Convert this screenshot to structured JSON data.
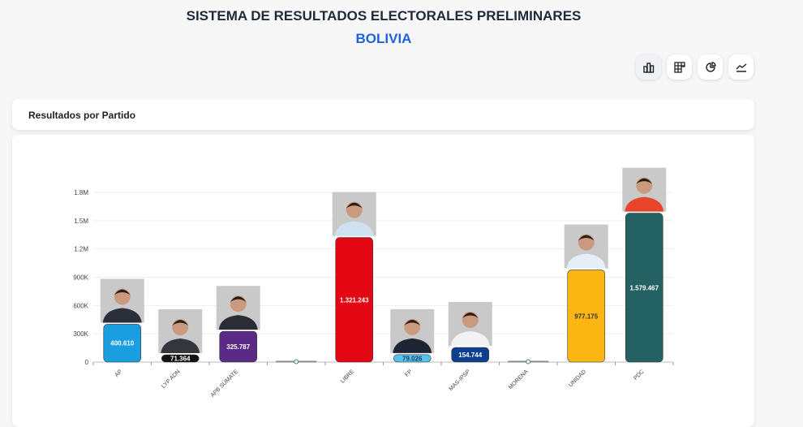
{
  "header": {
    "title": "SISTEMA DE RESULTADOS ELECTORALES PRELIMINARES",
    "subtitle": "BOLIVIA"
  },
  "toolbar": {
    "icons": [
      "bar-chart-icon",
      "grid-chart-icon",
      "pie-chart-icon",
      "line-chart-icon"
    ],
    "active": 0
  },
  "section": {
    "title": "Resultados por Partido"
  },
  "chart_data": {
    "type": "bar",
    "title": "",
    "xlabel": "",
    "ylabel": "",
    "ylim": [
      0,
      1800000
    ],
    "yticks": [
      "0",
      "300K",
      "600K",
      "900K",
      "1.2M",
      "1.5M",
      "1.8M"
    ],
    "grid": true,
    "categories": [
      "AP",
      "LYP ADN",
      "APB SÚMATE",
      "",
      "LIBRE",
      "FP",
      "MAS-IPSP",
      "MORENA",
      "UNIDAD",
      "PDC"
    ],
    "values": [
      400610,
      71364,
      325787,
      0,
      1321243,
      79026,
      154744,
      0,
      977175,
      1579467
    ],
    "labels": [
      "400.610",
      "71.364",
      "325.787",
      "0",
      "1.321.243",
      "79.026",
      "154.744",
      "0",
      "977.175",
      "1.579.467"
    ],
    "colors": [
      "#1a9ee0",
      "#111111",
      "#5b2a86",
      "#777777",
      "#e30613",
      "#56c3ee",
      "#0d3f8f",
      "#777777",
      "#fbb614",
      "#236162"
    ],
    "label_colors": [
      "#ffffff",
      "#ffffff",
      "#ffffff",
      "#555555",
      "#ffffff",
      "#1a3a5c",
      "#ffffff",
      "#555555",
      "#333333",
      "#ffffff"
    ],
    "photos": [
      true,
      true,
      true,
      false,
      true,
      true,
      true,
      false,
      true,
      true
    ]
  }
}
